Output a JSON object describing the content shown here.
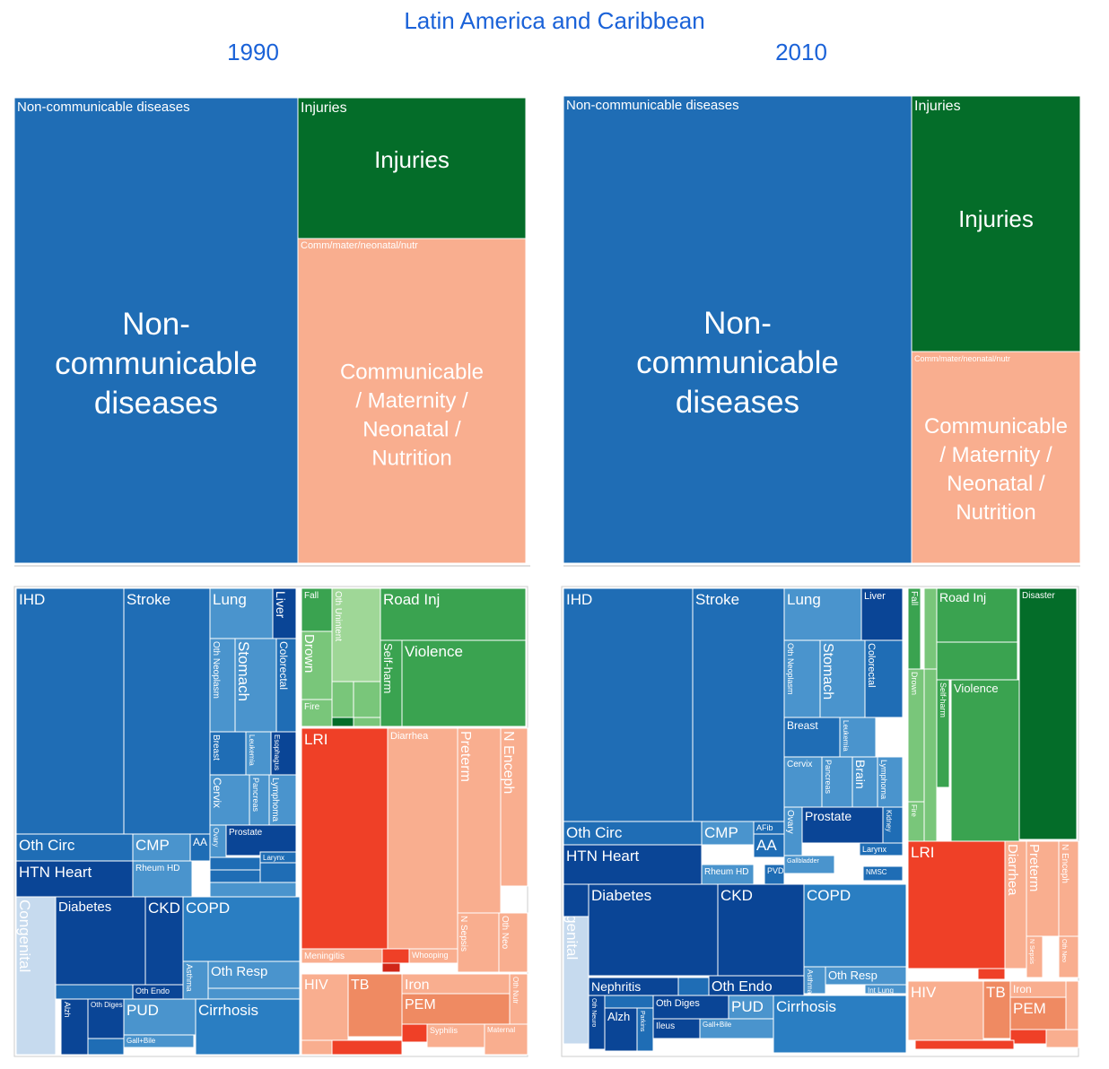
{
  "header": {
    "title": "Latin America and Caribbean",
    "year_left": "1990",
    "year_right": "2010"
  },
  "colors": {
    "ncd": "#1f6db5",
    "ncd_dark": "#0a4596",
    "ncd_mid": "#2a7ec2",
    "ncd_light": "#4a94cd",
    "ncd_pale": "#c6daee",
    "inj": "#046d29",
    "inj_mid": "#3aa350",
    "inj_light": "#79c67a",
    "inj_pale": "#9fd797",
    "cmnn": "#f9ae8f",
    "cmnn_mid": "#f7b59a",
    "cmnn_dark": "#ef8a62",
    "cmnn_red": "#ef4027",
    "cmnn_deep": "#d02618"
  },
  "chart_data": [
    {
      "type": "treemap",
      "title": "1990",
      "nodes": [
        {
          "header": "Non-communicable diseases",
          "label": "Non-\ncommunicable\ndiseases",
          "group": "ncd"
        },
        {
          "header": "Injuries",
          "label": "Injuries",
          "group": "inj"
        },
        {
          "header": "Comm/mater/neonatal/nutr",
          "label": "Communicable\n/ Maternity /\nNeonatal /\nNutrition",
          "group": "cmnn"
        }
      ]
    },
    {
      "type": "treemap",
      "title": "2010",
      "nodes": [
        {
          "header": "Non-communicable diseases",
          "label": "Non-\ncommunicable\ndiseases",
          "group": "ncd"
        },
        {
          "header": "Injuries",
          "label": "Injuries",
          "group": "inj"
        },
        {
          "header": "Comm/mater/neonatal/nutr",
          "label": "Communicable\n/ Maternity /\nNeonatal /\nNutrition",
          "group": "cmnn"
        }
      ]
    },
    {
      "type": "treemap",
      "title": "1990 causes",
      "cells": [
        {
          "label": "IHD",
          "c": "ncd"
        },
        {
          "label": "Stroke",
          "c": "ncd"
        },
        {
          "label": "Lung",
          "c": "ncd_light"
        },
        {
          "label": "Liver",
          "c": "ncd_dark"
        },
        {
          "label": "Oth Neoplasm",
          "c": "ncd_light"
        },
        {
          "label": "Stomach",
          "c": "ncd_light"
        },
        {
          "label": "Colorectal",
          "c": "ncd"
        },
        {
          "label": "Breast",
          "c": "ncd"
        },
        {
          "label": "Leukemia",
          "c": "ncd_light"
        },
        {
          "label": "Esophagus",
          "c": "ncd_dark"
        },
        {
          "label": "Cervix",
          "c": "ncd_light"
        },
        {
          "label": "Pancreas",
          "c": "ncd_light"
        },
        {
          "label": "Lymphoma",
          "c": "ncd_light"
        },
        {
          "label": "Prostate",
          "c": "ncd_dark"
        },
        {
          "label": "Larynx",
          "c": "ncd"
        },
        {
          "label": "Ovary",
          "c": "ncd_light"
        },
        {
          "label": "Oth Circ",
          "c": "ncd"
        },
        {
          "label": "CMP",
          "c": "ncd_light"
        },
        {
          "label": "AA",
          "c": "ncd"
        },
        {
          "label": "HTN Heart",
          "c": "ncd_dark"
        },
        {
          "label": "Rheum HD",
          "c": "ncd_light"
        },
        {
          "label": "Congenital",
          "c": "ncd_pale"
        },
        {
          "label": "Diabetes",
          "c": "ncd_dark"
        },
        {
          "label": "CKD",
          "c": "ncd_dark"
        },
        {
          "label": "COPD",
          "c": "ncd_mid"
        },
        {
          "label": "Asthma",
          "c": "ncd_light"
        },
        {
          "label": "Oth Resp",
          "c": "ncd_light"
        },
        {
          "label": "Oth Endo",
          "c": "ncd_dark"
        },
        {
          "label": "Oth Diges",
          "c": "ncd_dark"
        },
        {
          "label": "PUD",
          "c": "ncd_light"
        },
        {
          "label": "Gall+Bile",
          "c": "ncd_light"
        },
        {
          "label": "Cirrhosis",
          "c": "ncd_mid"
        },
        {
          "label": "Alzh",
          "c": "ncd_dark"
        },
        {
          "label": "Fall",
          "c": "inj_mid"
        },
        {
          "label": "Oth Unintent",
          "c": "inj_pale"
        },
        {
          "label": "Road Inj",
          "c": "inj_mid"
        },
        {
          "label": "Drown",
          "c": "inj_light"
        },
        {
          "label": "Self-harm",
          "c": "inj_mid"
        },
        {
          "label": "Violence",
          "c": "inj_mid"
        },
        {
          "label": "Fire",
          "c": "inj_light"
        },
        {
          "label": "LRI",
          "c": "cmnn_red"
        },
        {
          "label": "Diarrhea",
          "c": "cmnn"
        },
        {
          "label": "Preterm",
          "c": "cmnn"
        },
        {
          "label": "N Enceph",
          "c": "cmnn"
        },
        {
          "label": "N Sepsis",
          "c": "cmnn"
        },
        {
          "label": "Oth Neo",
          "c": "cmnn"
        },
        {
          "label": "Meningitis",
          "c": "cmnn"
        },
        {
          "label": "Whooping",
          "c": "cmnn"
        },
        {
          "label": "HIV",
          "c": "cmnn"
        },
        {
          "label": "TB",
          "c": "cmnn_dark"
        },
        {
          "label": "Iron",
          "c": "cmnn"
        },
        {
          "label": "Oth Nutr",
          "c": "cmnn"
        },
        {
          "label": "PEM",
          "c": "cmnn_dark"
        },
        {
          "label": "Syphilis",
          "c": "cmnn"
        },
        {
          "label": "Maternal",
          "c": "cmnn"
        }
      ]
    },
    {
      "type": "treemap",
      "title": "2010 causes",
      "cells": [
        {
          "label": "IHD",
          "c": "ncd"
        },
        {
          "label": "Stroke",
          "c": "ncd"
        },
        {
          "label": "Lung",
          "c": "ncd_light"
        },
        {
          "label": "Liver",
          "c": "ncd_dark"
        },
        {
          "label": "Oth Neoplasm",
          "c": "ncd_light"
        },
        {
          "label": "Stomach",
          "c": "ncd_light"
        },
        {
          "label": "Colorectal",
          "c": "ncd"
        },
        {
          "label": "Breast",
          "c": "ncd"
        },
        {
          "label": "Leukemia",
          "c": "ncd_light"
        },
        {
          "label": "Cervix",
          "c": "ncd_light"
        },
        {
          "label": "Pancreas",
          "c": "ncd_light"
        },
        {
          "label": "Brain",
          "c": "ncd_light"
        },
        {
          "label": "Lymphoma",
          "c": "ncd_light"
        },
        {
          "label": "Ovary",
          "c": "ncd_light"
        },
        {
          "label": "Prostate",
          "c": "ncd_dark"
        },
        {
          "label": "Kidney",
          "c": "ncd"
        },
        {
          "label": "Gallbladder",
          "c": "ncd_light"
        },
        {
          "label": "Larynx",
          "c": "ncd"
        },
        {
          "label": "NMSC",
          "c": "ncd"
        },
        {
          "label": "Oth Circ",
          "c": "ncd"
        },
        {
          "label": "CMP",
          "c": "ncd_light"
        },
        {
          "label": "AFib",
          "c": "ncd"
        },
        {
          "label": "AA",
          "c": "ncd"
        },
        {
          "label": "HTN Heart",
          "c": "ncd_dark"
        },
        {
          "label": "Rheum HD",
          "c": "ncd_light"
        },
        {
          "label": "PVD",
          "c": "ncd"
        },
        {
          "label": "Congenital",
          "c": "ncd_pale"
        },
        {
          "label": "Diabetes",
          "c": "ncd_dark"
        },
        {
          "label": "CKD",
          "c": "ncd_dark"
        },
        {
          "label": "COPD",
          "c": "ncd_mid"
        },
        {
          "label": "Asthma",
          "c": "ncd_light"
        },
        {
          "label": "Oth Resp",
          "c": "ncd_light"
        },
        {
          "label": "Int Lung",
          "c": "ncd_light"
        },
        {
          "label": "Nephritis",
          "c": "ncd_dark"
        },
        {
          "label": "Oth Endo",
          "c": "ncd_dark"
        },
        {
          "label": "Oth Diges",
          "c": "ncd_dark"
        },
        {
          "label": "PUD",
          "c": "ncd_light"
        },
        {
          "label": "Ileus",
          "c": "ncd_dark"
        },
        {
          "label": "Gall+Bile",
          "c": "ncd_light"
        },
        {
          "label": "Cirrhosis",
          "c": "ncd_mid"
        },
        {
          "label": "Oth Neuro",
          "c": "ncd_dark"
        },
        {
          "label": "Alzh",
          "c": "ncd_dark"
        },
        {
          "label": "Parkins",
          "c": "ncd"
        },
        {
          "label": "Fall",
          "c": "inj_mid"
        },
        {
          "label": "Road Inj",
          "c": "inj_mid"
        },
        {
          "label": "Disaster",
          "c": "inj"
        },
        {
          "label": "Self-harm",
          "c": "inj_mid"
        },
        {
          "label": "Violence",
          "c": "inj_mid"
        },
        {
          "label": "Drown",
          "c": "inj_light"
        },
        {
          "label": "Fire",
          "c": "inj_light"
        },
        {
          "label": "LRI",
          "c": "cmnn_red"
        },
        {
          "label": "Diarrhea",
          "c": "cmnn"
        },
        {
          "label": "Preterm",
          "c": "cmnn"
        },
        {
          "label": "N Enceph",
          "c": "cmnn"
        },
        {
          "label": "N Sepsis",
          "c": "cmnn"
        },
        {
          "label": "Oth Neo",
          "c": "cmnn"
        },
        {
          "label": "HIV",
          "c": "cmnn"
        },
        {
          "label": "TB",
          "c": "cmnn_dark"
        },
        {
          "label": "Iron",
          "c": "cmnn"
        },
        {
          "label": "PEM",
          "c": "cmnn_dark"
        }
      ]
    }
  ]
}
